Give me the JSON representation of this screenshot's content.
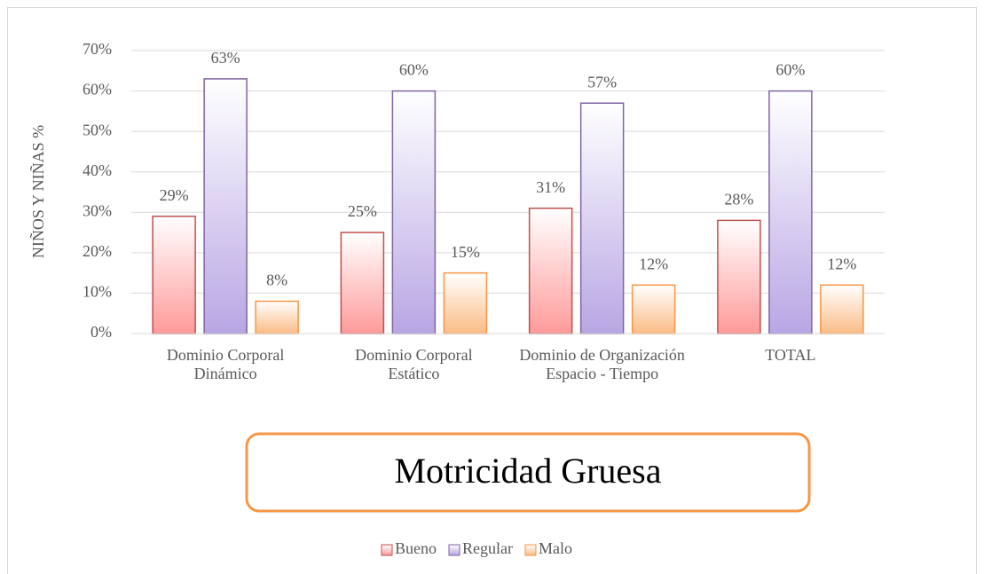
{
  "chart_data": {
    "type": "bar",
    "title": "Motricidad Gruesa",
    "ylabel": "NIÑOS Y NIÑAS %",
    "categories": [
      "Dominio Corporal Dinámico",
      "Dominio Corporal Estático",
      "Dominio de Organización Espacio - Tiempo",
      "TOTAL"
    ],
    "series": [
      {
        "name": "Bueno",
        "color": "#ff9a9a",
        "edgecolor": "#c0504d",
        "values": [
          29,
          25,
          31,
          28
        ],
        "value_labels": [
          "29%",
          "25%",
          "31%",
          "28%"
        ]
      },
      {
        "name": "Regular",
        "color": "#b8a6e4",
        "edgecolor": "#8064a2",
        "values": [
          63,
          60,
          57,
          60
        ],
        "value_labels": [
          "63%",
          "60%",
          "57%",
          "60%"
        ]
      },
      {
        "name": "Malo",
        "color": "#fbbc85",
        "edgecolor": "#f79646",
        "values": [
          8,
          15,
          12,
          12
        ],
        "value_labels": [
          "8%",
          "15%",
          "12%",
          "12%"
        ]
      }
    ],
    "ylim": [
      0,
      70
    ],
    "yticks": [
      {
        "value": 0,
        "label": "0%"
      },
      {
        "value": 10,
        "label": "10%"
      },
      {
        "value": 20,
        "label": "20%"
      },
      {
        "value": 30,
        "label": "30%"
      },
      {
        "value": 40,
        "label": "40%"
      },
      {
        "value": 50,
        "label": "50%"
      },
      {
        "value": 60,
        "label": "60%"
      },
      {
        "value": 70,
        "label": "70%"
      }
    ],
    "grid": true,
    "legend": "bottom"
  }
}
